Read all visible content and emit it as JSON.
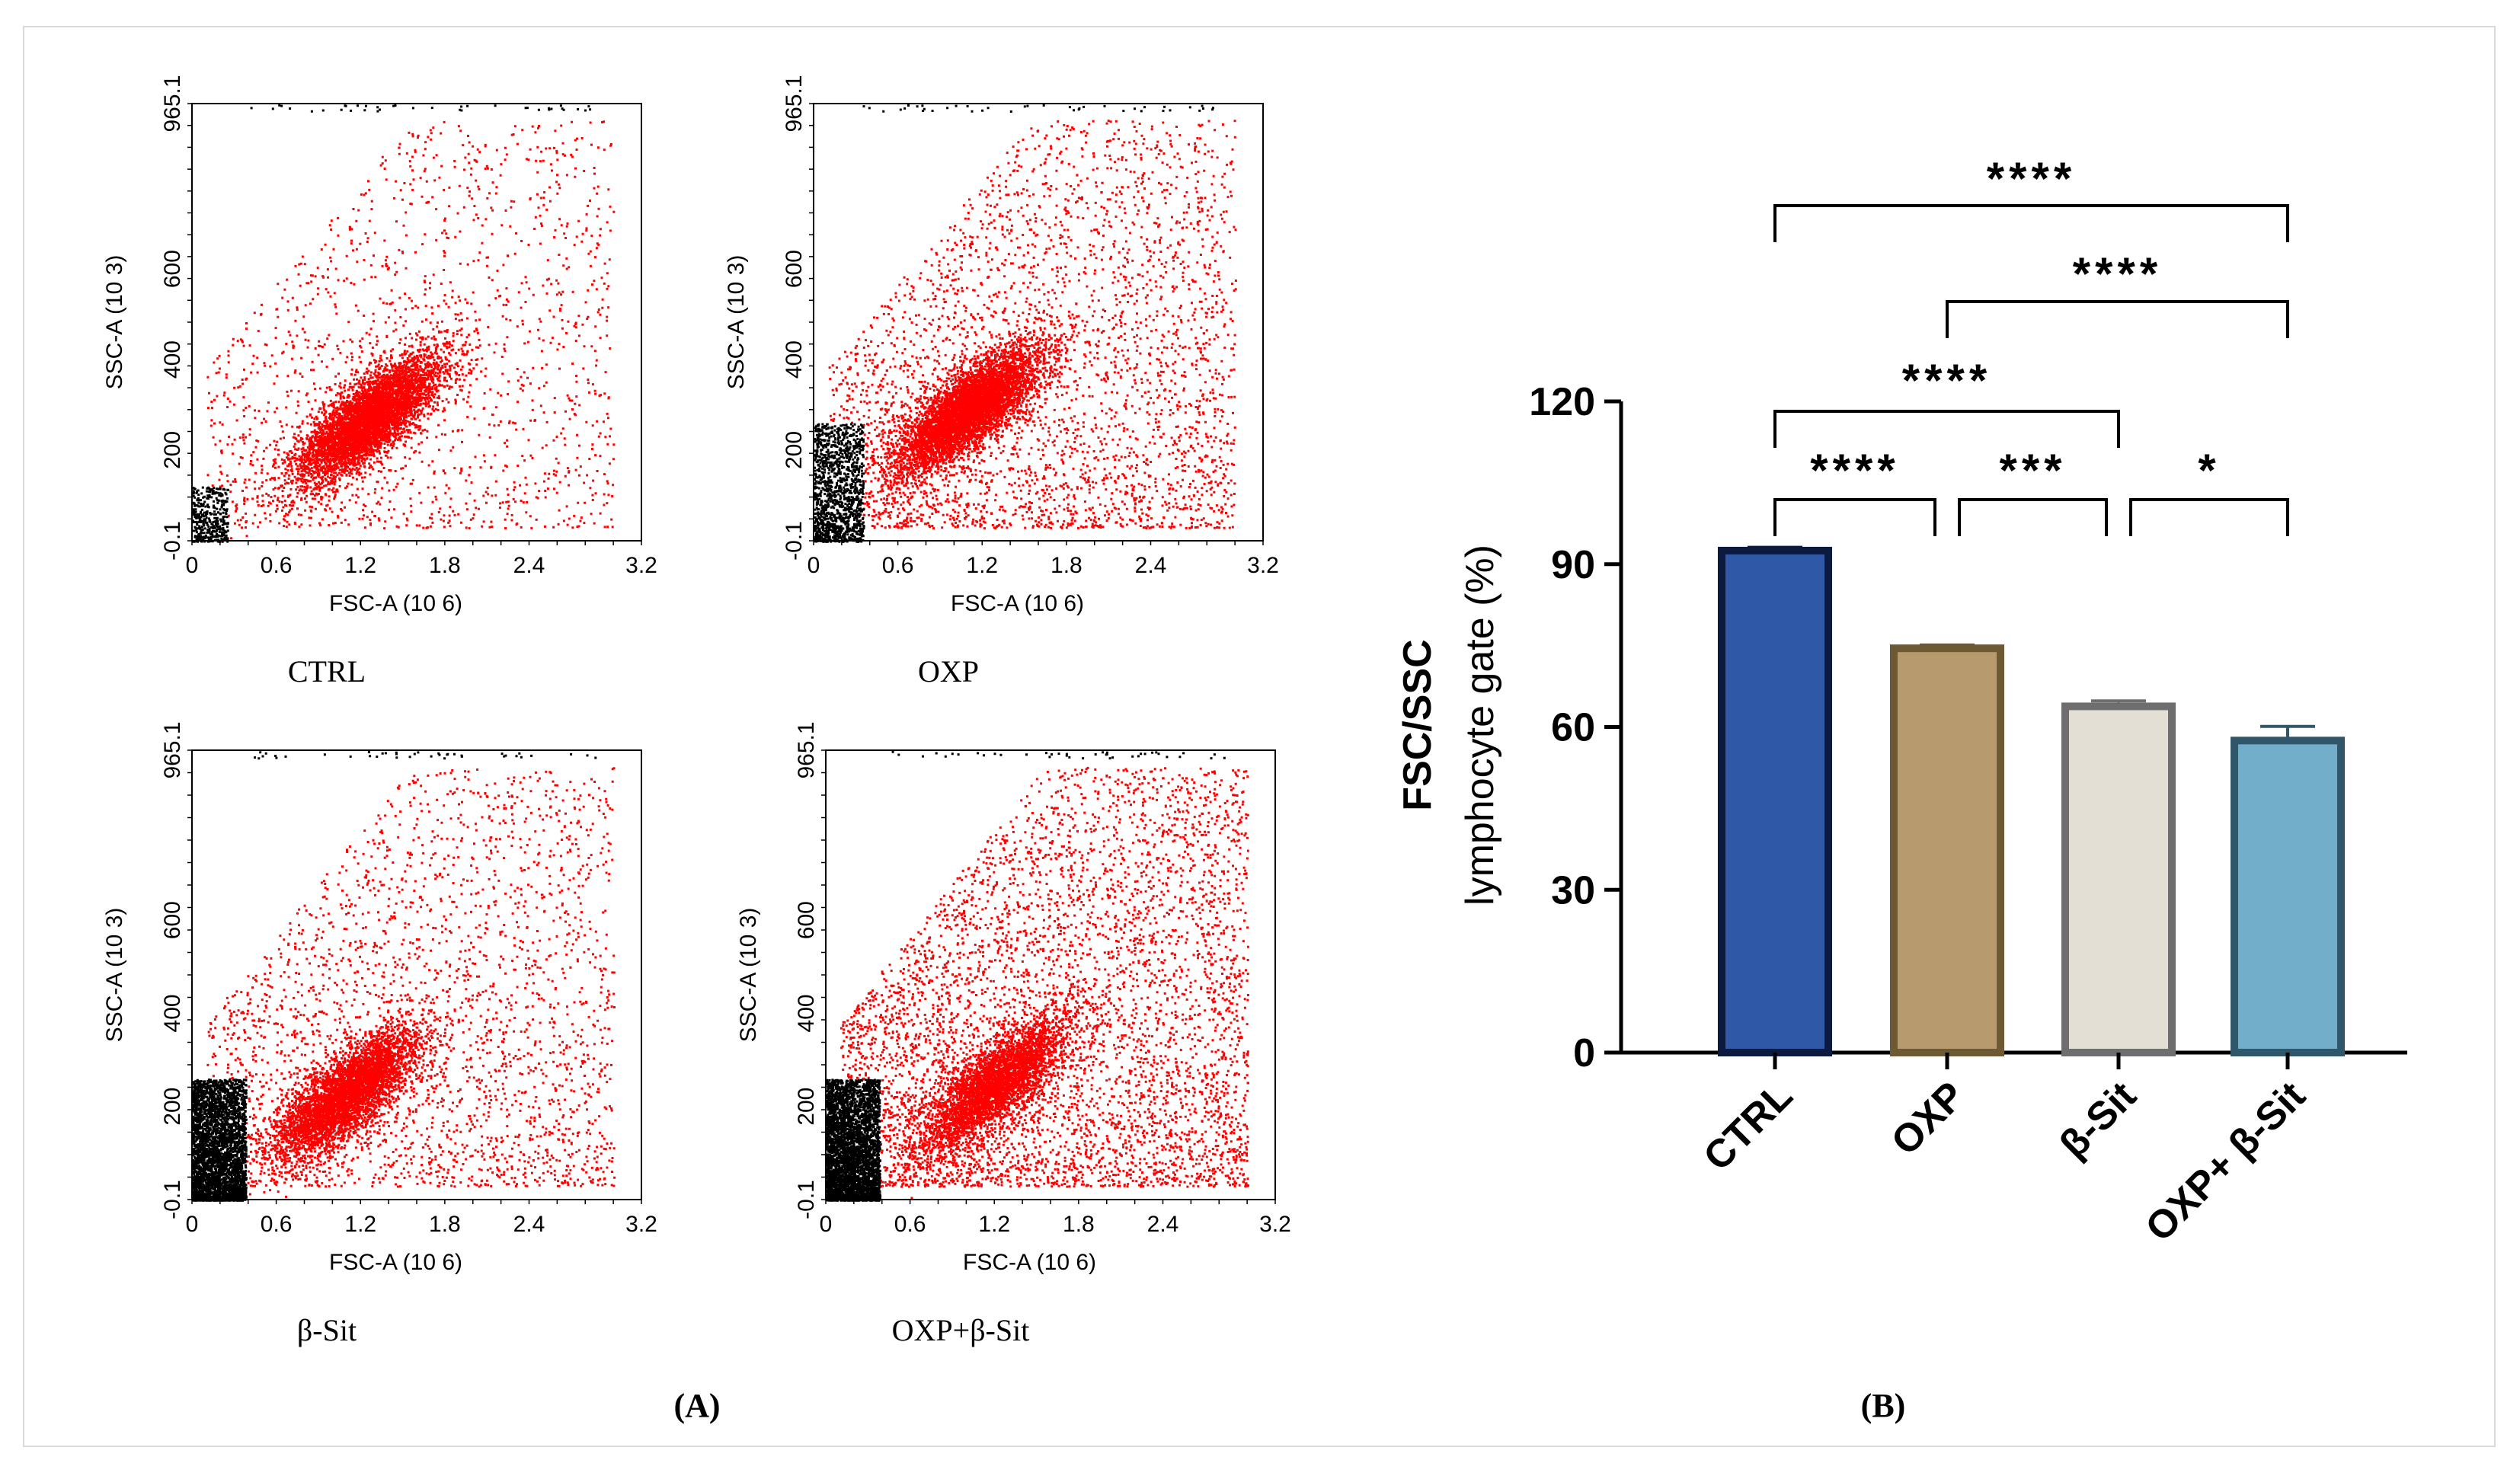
{
  "figure": {
    "panel_a_label": "(A)",
    "panel_b_label": "(B)"
  },
  "colors": {
    "gated": "#ff0000",
    "ungated": "#000000"
  },
  "chart_data": [
    {
      "type": "scatter",
      "panel": "A",
      "title": "CTRL",
      "xlabel": "FSC-A",
      "xlabel_unit": "(10 6)",
      "ylabel": "SSC-A",
      "ylabel_unit": "(10 3)",
      "x_ticks": [
        "0",
        "0.6",
        "1.2",
        "1.8",
        "2.4",
        "3.2"
      ],
      "y_ticks": [
        "-0.1",
        "200",
        "400",
        "600",
        "965.1"
      ],
      "xlim": [
        0,
        3.2
      ],
      "ylim": [
        -0.1,
        965.1
      ],
      "gated_cluster": {
        "center_x": 1.25,
        "center_y": 270,
        "events": 5200
      },
      "ungated_cluster": {
        "x_range": [
          0,
          0.25
        ],
        "y_range": [
          0,
          120
        ],
        "events": 400
      },
      "gated_spread_events": 1500
    },
    {
      "type": "scatter",
      "panel": "A",
      "title": "OXP",
      "xlabel": "FSC-A",
      "xlabel_unit": "(10 6)",
      "ylabel": "SSC-A",
      "ylabel_unit": "(10 3)",
      "x_ticks": [
        "0",
        "0.6",
        "1.2",
        "1.8",
        "2.4",
        "3.2"
      ],
      "y_ticks": [
        "-0.1",
        "200",
        "400",
        "600",
        "965.1"
      ],
      "xlim": [
        0,
        3.2
      ],
      "ylim": [
        -0.1,
        965.1
      ],
      "gated_cluster": {
        "center_x": 1.1,
        "center_y": 290,
        "events": 5600
      },
      "ungated_cluster": {
        "x_range": [
          0,
          0.35
        ],
        "y_range": [
          0,
          260
        ],
        "events": 1300
      },
      "gated_spread_events": 3200
    },
    {
      "type": "scatter",
      "panel": "A",
      "title": "β-Sit",
      "xlabel": "FSC-A",
      "xlabel_unit": "(10 6)",
      "ylabel": "SSC-A",
      "ylabel_unit": "(10 3)",
      "x_ticks": [
        "0",
        "0.6",
        "1.2",
        "1.8",
        "2.4",
        "3.2"
      ],
      "y_ticks": [
        "-0.1",
        "200",
        "400",
        "600",
        "965.1"
      ],
      "xlim": [
        0,
        3.2
      ],
      "ylim": [
        -0.1,
        965.1
      ],
      "gated_cluster": {
        "center_x": 1.1,
        "center_y": 230,
        "events": 4600
      },
      "ungated_cluster": {
        "x_range": [
          0,
          0.38
        ],
        "y_range": [
          0,
          260
        ],
        "events": 3600
      },
      "gated_spread_events": 2600
    },
    {
      "type": "scatter",
      "panel": "A",
      "title": "OXP+β-Sit",
      "xlabel": "FSC-A",
      "xlabel_unit": "(10 6)",
      "ylabel": "SSC-A",
      "ylabel_unit": "(10 3)",
      "x_ticks": [
        "0",
        "0.6",
        "1.2",
        "1.8",
        "2.4",
        "3.2"
      ],
      "y_ticks": [
        "-0.1",
        "200",
        "400",
        "600",
        "965.1"
      ],
      "xlim": [
        0,
        3.2
      ],
      "ylim": [
        -0.1,
        965.1
      ],
      "gated_cluster": {
        "center_x": 1.2,
        "center_y": 250,
        "events": 3800
      },
      "ungated_cluster": {
        "x_range": [
          0,
          0.38
        ],
        "y_range": [
          0,
          260
        ],
        "events": 3800
      },
      "gated_spread_events": 5000
    },
    {
      "type": "bar",
      "panel": "B",
      "ylabel_line1": "FSC/SSC",
      "ylabel_line2": "lymphocyte gate (%)",
      "categories": [
        "CTRL",
        "OXP",
        "β-Sit",
        "OXP+ β-Sit"
      ],
      "values": [
        92.5,
        74.5,
        63.8,
        57.5
      ],
      "errors": [
        0.6,
        0.6,
        1.0,
        2.6
      ],
      "fill_colors": [
        "#2f59a6",
        "#b79b6e",
        "#e4dfd5",
        "#72aec9"
      ],
      "edge_colors": [
        "#0d1a3f",
        "#6d5a34",
        "#6e6e6e",
        "#2f5669"
      ],
      "ylim": [
        0,
        120
      ],
      "y_ticks": [
        "0",
        "30",
        "60",
        "90",
        "120"
      ],
      "significance": [
        {
          "from": 0,
          "to": 3,
          "label": "****"
        },
        {
          "from": 1,
          "to": 3,
          "label": "****"
        },
        {
          "from": 0,
          "to": 2,
          "label": "****"
        },
        {
          "from": 0,
          "to": 1,
          "label": "****"
        },
        {
          "from": 1,
          "to": 2,
          "label": "***"
        },
        {
          "from": 2,
          "to": 3,
          "label": "*"
        }
      ]
    }
  ]
}
